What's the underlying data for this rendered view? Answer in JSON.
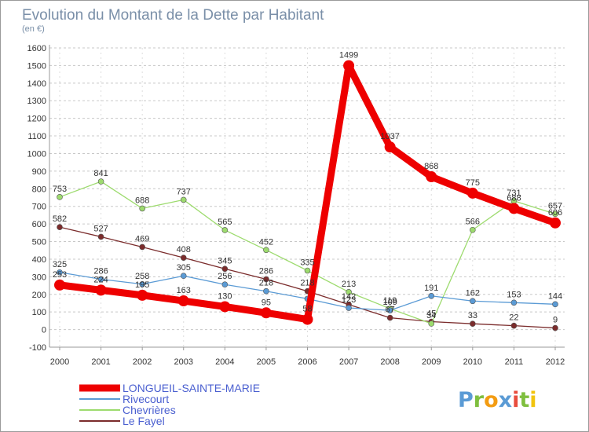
{
  "chart_data": {
    "type": "line",
    "title": "Evolution du Montant de la Dette par Habitant",
    "subtitle": "(en €)",
    "xlabel": "",
    "ylabel": "",
    "x": [
      "2000",
      "2001",
      "2002",
      "2003",
      "2004",
      "2005",
      "2006",
      "2007",
      "2008",
      "2009",
      "2010",
      "2011",
      "2012"
    ],
    "ylim": [
      -100,
      1600
    ],
    "yticks": [
      "-100",
      "0",
      "100",
      "200",
      "300",
      "400",
      "500",
      "600",
      "700",
      "800",
      "900",
      "1000",
      "1100",
      "1200",
      "1300",
      "1400",
      "1500",
      "1600"
    ],
    "grid": "horizontal dashed",
    "legend": "bottom-left",
    "series": [
      {
        "name": "LONGUEIL-SAINTE-MARIE",
        "color": "#ee0000",
        "values": [
          253,
          224,
          195,
          163,
          130,
          95,
          58,
          1499,
          1037,
          868,
          775,
          688,
          606
        ],
        "labels": [
          "253",
          "224",
          "195",
          "163",
          "130",
          "95",
          "58",
          "1499",
          "1037",
          "868",
          "775",
          "688",
          "606"
        ]
      },
      {
        "name": "Rivecourt",
        "color": "#5b9bd5",
        "values": [
          325,
          286,
          258,
          305,
          256,
          218,
          175,
          123,
          109,
          191,
          162,
          153,
          144
        ],
        "labels": [
          "325",
          "286",
          "258",
          "305",
          "256",
          "218",
          "",
          "123",
          "109",
          "191",
          "162",
          "153",
          "144"
        ]
      },
      {
        "name": "Chevrières",
        "color": "#9ddb6e",
        "values": [
          753,
          841,
          688,
          737,
          565,
          452,
          335,
          213,
          119,
          34,
          566,
          731,
          657
        ],
        "labels": [
          "753",
          "841",
          "688",
          "737",
          "565",
          "452",
          "335",
          "213",
          "119",
          "34",
          "566",
          "731",
          "657"
        ]
      },
      {
        "name": "Le Fayel",
        "color": "#7b2c2c",
        "values": [
          582,
          527,
          469,
          408,
          345,
          286,
          218,
          142,
          67,
          45,
          33,
          22,
          9
        ],
        "labels": [
          "582",
          "527",
          "469",
          "408",
          "345",
          "286",
          "218",
          "142",
          "67",
          "45",
          "33",
          "22",
          "9"
        ]
      }
    ]
  },
  "logo": {
    "letters": [
      "P",
      "r",
      "o",
      "x",
      "i",
      "t",
      "i"
    ],
    "colors": [
      "#5b9bd5",
      "#7fbf3f",
      "#f39c12",
      "#5b9bd5",
      "#e84c3d",
      "#7fbf3f",
      "#f1c40f"
    ]
  }
}
